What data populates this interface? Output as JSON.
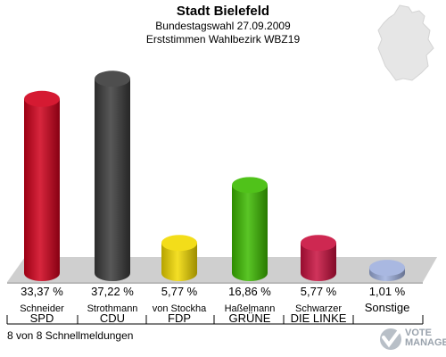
{
  "header": {
    "title": "Stadt Bielefeld",
    "subtitle": "Bundestagswahl 27.09.2009",
    "subtitle2": "Erststimmen Wahlbezirk WBZ19"
  },
  "footer": {
    "text": "8 von 8 Schnellmeldungen"
  },
  "logo": {
    "line1": "VOTE",
    "line2": "MANAGER"
  },
  "chart_data": {
    "type": "bar",
    "categories": [
      "SPD",
      "CDU",
      "FDP",
      "GRÜNE",
      "DIE LINKE",
      "Sonstige"
    ],
    "candidates": [
      "Schneider",
      "Strothmann",
      "von Stockha",
      "Haßelmann",
      "Schwarzer",
      ""
    ],
    "values": [
      33.37,
      37.22,
      5.77,
      16.86,
      5.77,
      1.01
    ],
    "value_labels": [
      "33,37 %",
      "37,22 %",
      "5,77 %",
      "16,86 %",
      "5,77 %",
      "1,01 %"
    ],
    "colors": [
      "#d0001b",
      "#3a3a3a",
      "#f2d900",
      "#3dbb00",
      "#c8103e",
      "#9fb0de"
    ],
    "ylim": [
      0,
      40
    ],
    "grid": false,
    "legend": "none"
  }
}
